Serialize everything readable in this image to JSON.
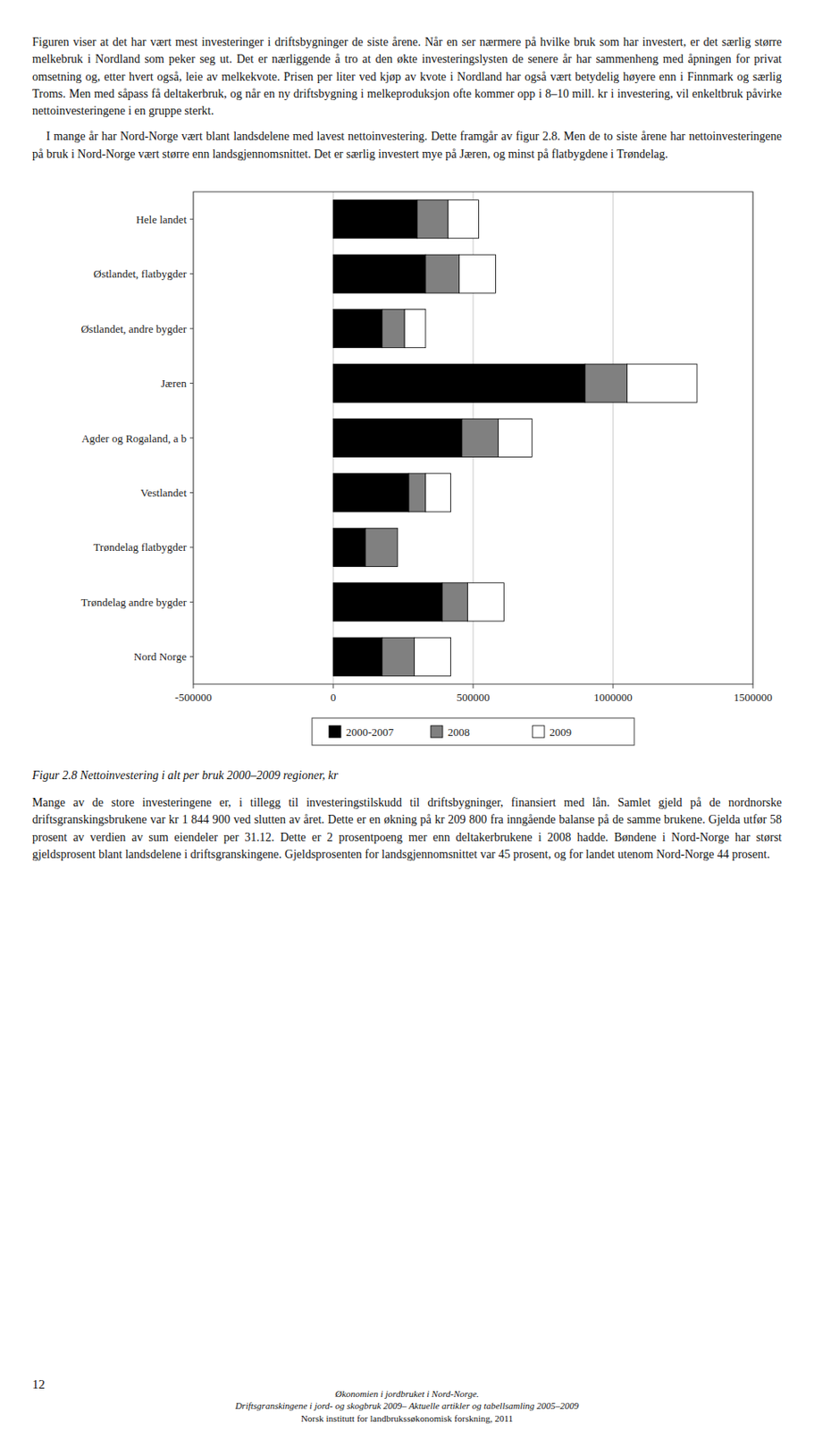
{
  "chart_data": {
    "type": "bar",
    "orientation": "horizontal",
    "stacked": true,
    "title": "Figur 2.8 Nettoinvestering i alt per bruk 2000–2009 regioner, kr",
    "categories": [
      "Hele landet",
      "Østlandet, flatbygder",
      "Østlandet, andre bygder",
      "Jæren",
      "Agder og Rogaland, a b",
      "Vestlandet",
      "Trøndelag flatbygder",
      "Trøndelag andre bygder",
      "Nord Norge"
    ],
    "series": [
      {
        "name": "2000-2007",
        "color": "#000000",
        "values": [
          300000,
          330000,
          175000,
          900000,
          460000,
          270000,
          115000,
          390000,
          175000
        ]
      },
      {
        "name": "2008",
        "color": "#808080",
        "values": [
          110000,
          120000,
          80000,
          150000,
          130000,
          60000,
          115000,
          90000,
          115000
        ]
      },
      {
        "name": "2009",
        "color": "#ffffff",
        "values": [
          110000,
          130000,
          75000,
          250000,
          120000,
          90000,
          0,
          130000,
          130000
        ]
      }
    ],
    "xlim": [
      -500000,
      1500000
    ],
    "xticks": [
      -500000,
      0,
      500000,
      1000000,
      1500000
    ],
    "grid": true,
    "legend": "bottom"
  },
  "text_before": [
    "Figuren viser at det har vært mest investeringer i driftsbygninger de siste årene. Når en ser nærmere på hvilke bruk som har investert, er det særlig større melkebruk i Nordland som peker seg ut. Det er nærliggende å tro at den økte investeringslysten de senere år har sammenheng med åpningen for privat omsetning og, etter hvert også, leie av melkekvote. Prisen per liter ved kjøp av kvote i Nordland har også vært betydelig høyere enn i Finnmark og særlig Troms. Men med såpass få deltakerbruk, og når en ny driftsbygning i melkeproduksjon ofte kommer opp i 8–10 mill. kr i investering, vil enkeltbruk påvirke nettoinvesteringene i en gruppe sterkt.",
    "    I mange år har Nord-Norge vært blant landsdelene med lavest nettoinvestering. Dette framgår av figur 2.8. Men de to siste årene har nettoinvesteringene på bruk i Nord-Norge vært større enn landsgjennomsnittet. Det er særlig investert mye på Jæren, og minst på flatbygdene i Trøndelag."
  ],
  "text_after": [
    "Mange av de store investeringene er, i tillegg til investeringstilskudd til driftsbygninger, finansiert med lån. Samlet gjeld på de nordnorske driftsgranskingsbrukene var kr 1 844 900 ved slutten av året. Dette er en økning på kr 209 800 fra inngående balanse på de samme brukene. Gjelda utfør 58 prosent av verdien av sum eiendeler per 31.12. Dette er 2 prosentpoeng mer enn deltakerbrukene i 2008 hadde. Bøndene i Nord-Norge har størst gjeldsprosent blant landsdelene i driftsgranskingene. Gjeldsprosenten for landsgjennomsnittet var 45 prosent, og for landet utenom Nord-Norge 44 prosent."
  ],
  "page_number": "12",
  "footer": [
    "Økonomien i jordbruket i Nord-Norge.",
    "Driftsgranskingene i jord- og skogbruk 2009– Aktuelle artikler og tabellsamling 2005–2009",
    "Norsk institutt for landbrukssøkonomisk forskning, 2011"
  ]
}
